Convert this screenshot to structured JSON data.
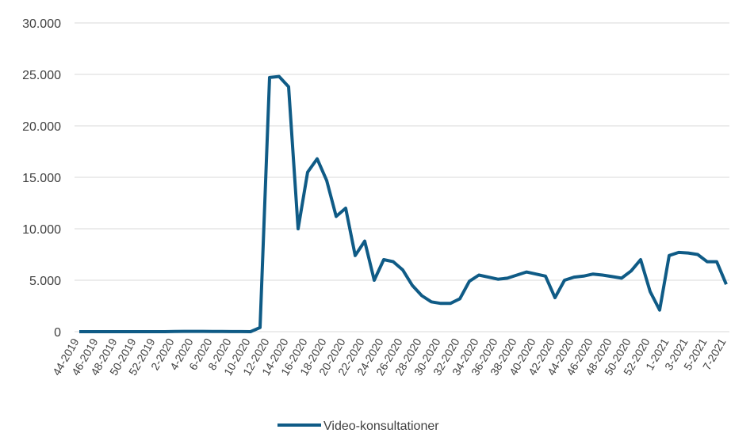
{
  "chart_data": {
    "type": "line",
    "categories": [
      "44-2019",
      null,
      "46-2019",
      null,
      "48-2019",
      null,
      "50-2019",
      null,
      "52-2019",
      null,
      "2-2020",
      null,
      "4-2020",
      null,
      "6-2020",
      null,
      "8-2020",
      null,
      "10-2020",
      null,
      "12-2020",
      null,
      "14-2020",
      null,
      "16-2020",
      null,
      "18-2020",
      null,
      "20-2020",
      null,
      "22-2020",
      null,
      "24-2020",
      null,
      "26-2020",
      null,
      "28-2020",
      null,
      "30-2020",
      null,
      "32-2020",
      null,
      "34-2020",
      null,
      "36-2020",
      null,
      "38-2020",
      null,
      "40-2020",
      null,
      "42-2020",
      null,
      "44-2020",
      null,
      "46-2020",
      null,
      "48-2020",
      null,
      "50-2020",
      null,
      "52-2020",
      null,
      "1-2021",
      null,
      "3-2021",
      null,
      "5-2021",
      null,
      "7-2021"
    ],
    "series": [
      {
        "name": "Video-konsultationer",
        "color": "#0f5b86",
        "values": [
          0,
          0,
          0,
          0,
          0,
          0,
          0,
          0,
          0,
          0,
          20,
          30,
          30,
          30,
          20,
          20,
          10,
          10,
          0,
          400,
          24700,
          24800,
          23800,
          10000,
          15500,
          16800,
          14700,
          11200,
          12000,
          7400,
          8800,
          5000,
          7000,
          6800,
          6000,
          4500,
          3500,
          2900,
          2750,
          2750,
          3200,
          4900,
          5500,
          5300,
          5100,
          5200,
          5500,
          5800,
          5600,
          5400,
          3300,
          5000,
          5300,
          5400,
          5600,
          5500,
          5350,
          5200,
          5900,
          7000,
          3900,
          2100,
          7400,
          7700,
          7650,
          7500,
          6800,
          6800,
          4600
        ]
      }
    ],
    "ylim": [
      0,
      30000
    ],
    "yticks": [
      0,
      {
        "value": 5000,
        "label": "5.000"
      },
      {
        "value": 10000,
        "label": "10.000"
      },
      {
        "value": 15000,
        "label": "15.000"
      },
      {
        "value": 20000,
        "label": "20.000"
      },
      {
        "value": 25000,
        "label": "25.000"
      },
      {
        "value": 30000,
        "label": "30.000"
      }
    ],
    "grid": true,
    "legend": "bottom"
  }
}
